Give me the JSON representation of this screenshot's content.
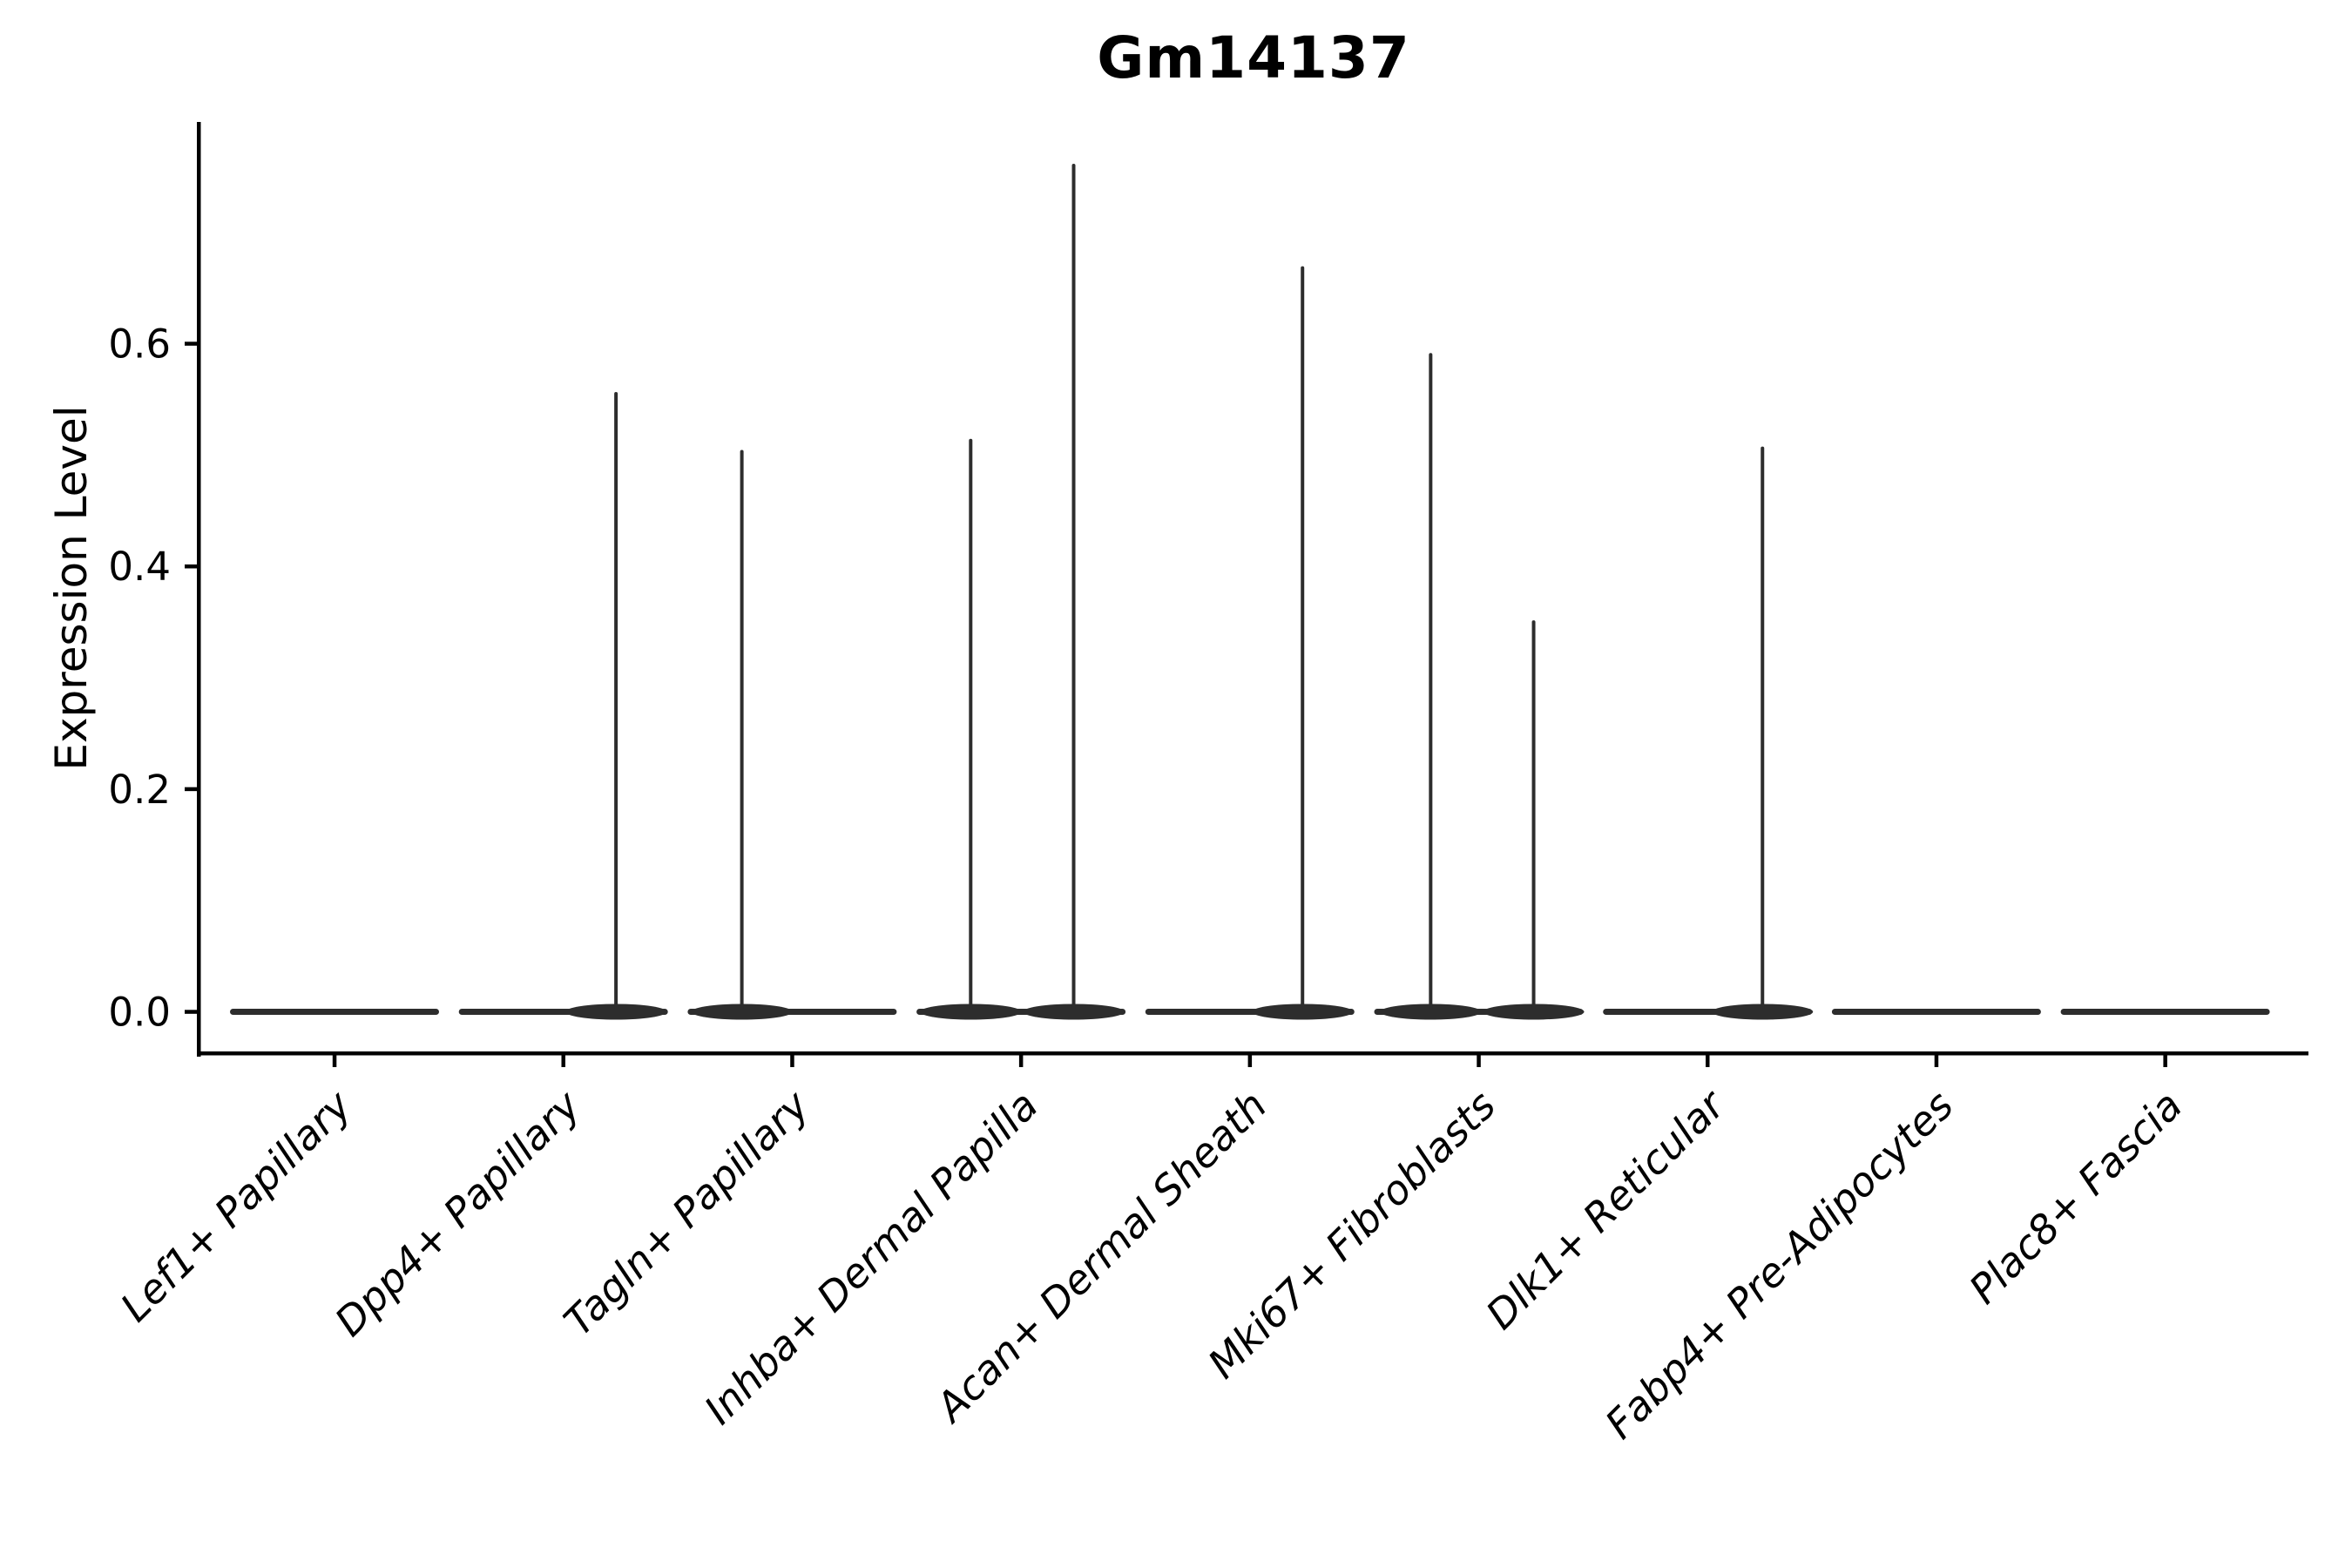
{
  "figure": {
    "title": "Gm14137"
  },
  "chart_data": {
    "type": "violin",
    "title": "Gm14137",
    "xlabel": "",
    "ylabel": "Expression Level",
    "ytick_labels": [
      "0.0",
      "0.2",
      "0.4",
      "0.6"
    ],
    "ytick_values": [
      0.0,
      0.2,
      0.4,
      0.6
    ],
    "ylim": [
      -0.038,
      0.798
    ],
    "grid": false,
    "legend": "none",
    "categories": [
      "Lef1+ Papillary",
      "Dpp4+ Papillary",
      "Tagln+ Papillary",
      "Inhba+ Dermal Papilla",
      "Acan+ Dermal Sheath",
      "Mki67+ Fibroblasts",
      "Dlk1+ Reticular",
      "Fabp4+ Pre-Adipocytes",
      "Plac8+ Fascia"
    ],
    "violins": [
      {
        "category": "Lef1+ Papillary",
        "body_value": 0.0,
        "spikes": []
      },
      {
        "category": "Dpp4+ Papillary",
        "body_value": 0.0,
        "spikes": [
          {
            "value": 0.555,
            "offset": 0.23
          }
        ]
      },
      {
        "category": "Tagln+ Papillary",
        "body_value": 0.0,
        "spikes": [
          {
            "value": 0.503,
            "offset": -0.22
          }
        ]
      },
      {
        "category": "Inhba+ Dermal Papilla",
        "body_value": 0.0,
        "spikes": [
          {
            "value": 0.513,
            "offset": -0.22
          },
          {
            "value": 0.76,
            "offset": 0.23
          }
        ]
      },
      {
        "category": "Acan+ Dermal Sheath",
        "body_value": 0.0,
        "spikes": [
          {
            "value": 0.668,
            "offset": 0.23
          }
        ]
      },
      {
        "category": "Mki67+ Fibroblasts",
        "body_value": 0.0,
        "spikes": [
          {
            "value": 0.59,
            "offset": -0.21
          },
          {
            "value": 0.35,
            "offset": 0.24
          }
        ]
      },
      {
        "category": "Dlk1+ Reticular",
        "body_value": 0.0,
        "spikes": [
          {
            "value": 0.506,
            "offset": 0.24
          }
        ]
      },
      {
        "category": "Fabp4+ Pre-Adipocytes",
        "body_value": 0.0,
        "spikes": []
      },
      {
        "category": "Plac8+ Fascia",
        "body_value": 0.0,
        "spikes": []
      }
    ],
    "colors": {
      "violin_line": "#2d2d2d",
      "axis": "#000000",
      "text": "#000000",
      "background": "#ffffff"
    }
  }
}
